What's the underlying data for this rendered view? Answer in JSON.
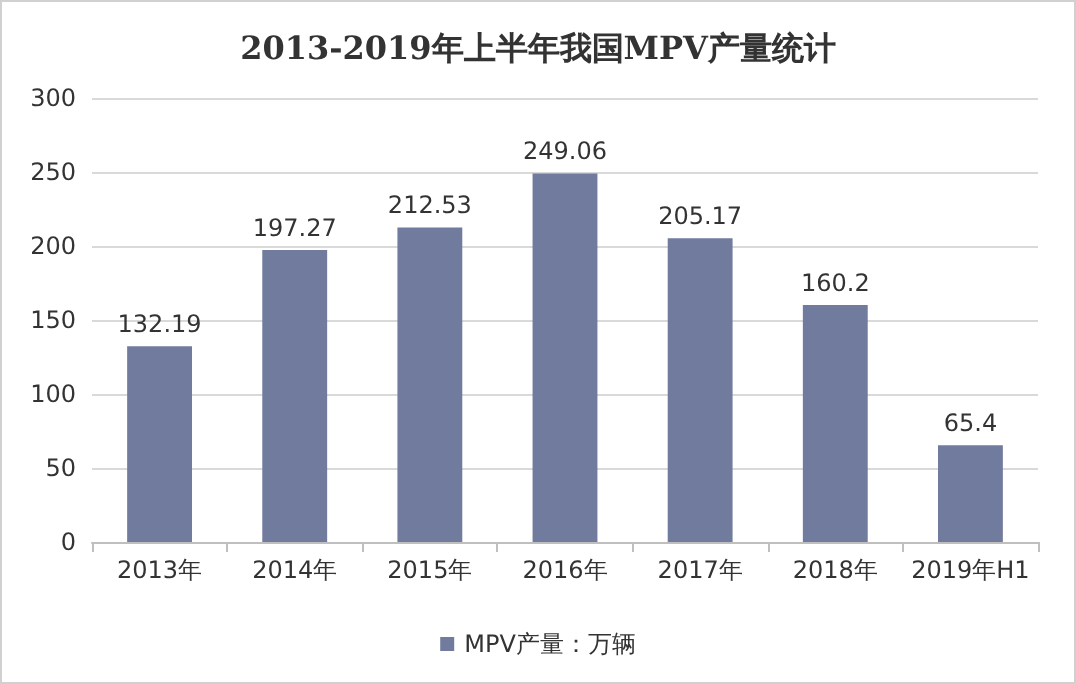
{
  "chart_data": {
    "type": "bar",
    "title": "2013-2019年上半年我国MPV产量统计",
    "categories": [
      "2013年",
      "2014年",
      "2015年",
      "2016年",
      "2017年",
      "2018年",
      "2019年H1"
    ],
    "series": [
      {
        "name": "MPV产量：万辆",
        "color": "#717b9e",
        "values": [
          132.19,
          197.27,
          212.53,
          249.06,
          205.17,
          160.2,
          65.4
        ]
      }
    ],
    "ylim": [
      0,
      300
    ],
    "yticks": [
      0,
      50,
      100,
      150,
      200,
      250,
      300
    ],
    "grid": "y",
    "legend": "bottom",
    "data_labels": true
  }
}
